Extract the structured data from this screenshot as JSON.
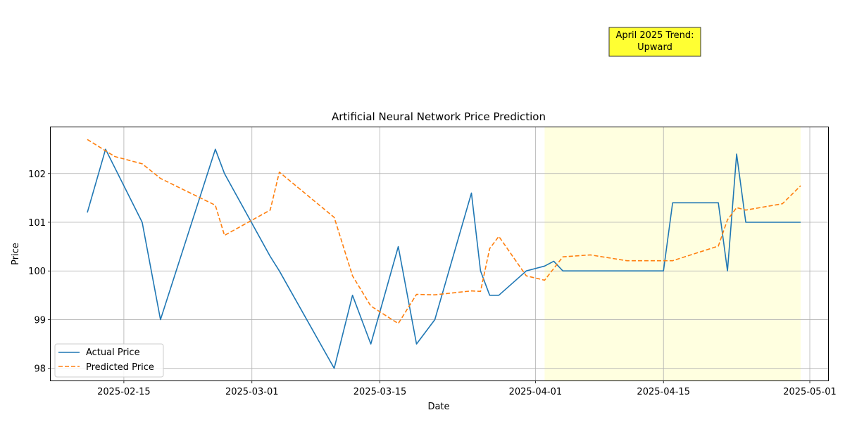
{
  "chart_data": {
    "type": "line",
    "title": "Artificial Neural Network Price Prediction",
    "xlabel": "Date",
    "ylabel": "Price",
    "xlim": [
      "2025-02-07",
      "2025-05-03"
    ],
    "ylim": [
      97.75,
      102.95
    ],
    "x_ticks": [
      "2025-02-15",
      "2025-03-01",
      "2025-03-15",
      "2025-04-01",
      "2025-04-15",
      "2025-05-01"
    ],
    "y_ticks": [
      98,
      99,
      100,
      101,
      102
    ],
    "grid": true,
    "legend_position": "lower-left",
    "highlight_range": {
      "start": "2025-04-02",
      "end": "2025-04-30",
      "color": "#ffffe0"
    },
    "annotation": {
      "text_lines": [
        "April 2025 Trend:",
        "Upward"
      ],
      "background": "#ffff33"
    },
    "series": [
      {
        "name": "Actual Price",
        "color": "#1f77b4",
        "style": "solid",
        "points": [
          [
            "2025-02-11",
            101.2
          ],
          [
            "2025-02-13",
            102.5
          ],
          [
            "2025-02-17",
            101.0
          ],
          [
            "2025-02-19",
            99.0
          ],
          [
            "2025-02-25",
            102.5
          ],
          [
            "2025-02-26",
            102.0
          ],
          [
            "2025-03-03",
            100.3
          ],
          [
            "2025-03-04",
            100.0
          ],
          [
            "2025-03-10",
            98.0
          ],
          [
            "2025-03-12",
            99.5
          ],
          [
            "2025-03-14",
            98.5
          ],
          [
            "2025-03-17",
            100.5
          ],
          [
            "2025-03-19",
            98.5
          ],
          [
            "2025-03-21",
            99.0
          ],
          [
            "2025-03-25",
            101.6
          ],
          [
            "2025-03-26",
            100.0
          ],
          [
            "2025-03-27",
            99.5
          ],
          [
            "2025-03-28",
            99.5
          ],
          [
            "2025-03-31",
            100.0
          ],
          [
            "2025-04-02",
            100.1
          ],
          [
            "2025-04-03",
            100.2
          ],
          [
            "2025-04-04",
            100.0
          ],
          [
            "2025-04-15",
            100.0
          ],
          [
            "2025-04-16",
            101.4
          ],
          [
            "2025-04-21",
            101.4
          ],
          [
            "2025-04-22",
            100.0
          ],
          [
            "2025-04-23",
            102.4
          ],
          [
            "2025-04-24",
            101.0
          ],
          [
            "2025-04-30",
            101.0
          ]
        ]
      },
      {
        "name": "Predicted Price",
        "color": "#ff7f0e",
        "style": "dashed",
        "points": [
          [
            "2025-02-11",
            102.7
          ],
          [
            "2025-02-14",
            102.35
          ],
          [
            "2025-02-17",
            102.2
          ],
          [
            "2025-02-19",
            101.9
          ],
          [
            "2025-02-25",
            101.35
          ],
          [
            "2025-02-26",
            100.73
          ],
          [
            "2025-03-03",
            101.25
          ],
          [
            "2025-03-04",
            102.03
          ],
          [
            "2025-03-10",
            101.1
          ],
          [
            "2025-03-12",
            99.9
          ],
          [
            "2025-03-14",
            99.28
          ],
          [
            "2025-03-17",
            98.92
          ],
          [
            "2025-03-19",
            99.52
          ],
          [
            "2025-03-21",
            99.51
          ],
          [
            "2025-03-25",
            99.59
          ],
          [
            "2025-03-26",
            99.58
          ],
          [
            "2025-03-27",
            100.46
          ],
          [
            "2025-03-28",
            100.71
          ],
          [
            "2025-03-31",
            99.9
          ],
          [
            "2025-04-02",
            99.81
          ],
          [
            "2025-04-04",
            100.29
          ],
          [
            "2025-04-07",
            100.33
          ],
          [
            "2025-04-11",
            100.21
          ],
          [
            "2025-04-16",
            100.21
          ],
          [
            "2025-04-21",
            100.51
          ],
          [
            "2025-04-22",
            101.05
          ],
          [
            "2025-04-23",
            101.3
          ],
          [
            "2025-04-24",
            101.25
          ],
          [
            "2025-04-28",
            101.38
          ],
          [
            "2025-04-30",
            101.75
          ]
        ]
      }
    ]
  }
}
